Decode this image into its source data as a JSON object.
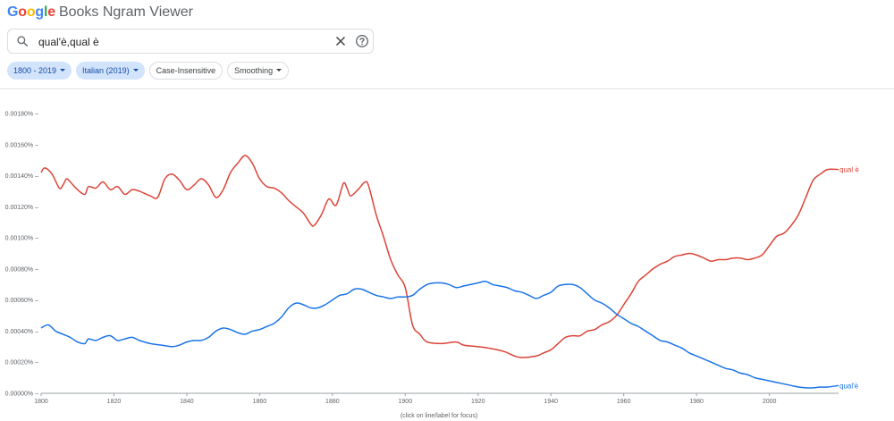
{
  "header": {
    "logo": {
      "letters": [
        "G",
        "o",
        "o",
        "g",
        "l",
        "e"
      ],
      "colors": [
        "#4285f4",
        "#ea4335",
        "#fbbc05",
        "#4285f4",
        "#34a853",
        "#ea4335"
      ]
    },
    "app_name": "Books Ngram Viewer"
  },
  "search": {
    "value": "qual'è,qual è",
    "icon": "search-icon",
    "clear_icon": "close-icon",
    "help_icon": "help-icon"
  },
  "chips": [
    {
      "label": "1800 - 2019",
      "style": "blue",
      "dropdown": true
    },
    {
      "label": "Italian (2019)",
      "style": "blue",
      "dropdown": true
    },
    {
      "label": "Case-Insensitive",
      "style": "plain",
      "dropdown": false
    },
    {
      "label": "Smoothing",
      "style": "plain",
      "dropdown": true
    }
  ],
  "chart_data": {
    "type": "line",
    "xlim": [
      1800,
      2019
    ],
    "ylim": [
      0,
      0.0018
    ],
    "x_ticks": [
      1800,
      1820,
      1840,
      1860,
      1880,
      1900,
      1920,
      1940,
      1960,
      1980,
      2000
    ],
    "y_ticks": [
      {
        "value": 0,
        "label": "0.00000%"
      },
      {
        "value": 0.0002,
        "label": "0.00020%"
      },
      {
        "value": 0.0004,
        "label": "0.00040%"
      },
      {
        "value": 0.0006,
        "label": "0.00060%"
      },
      {
        "value": 0.0008,
        "label": "0.00080%"
      },
      {
        "value": 0.001,
        "label": "0.00100%"
      },
      {
        "value": 0.0012,
        "label": "0.00120%"
      },
      {
        "value": 0.0014,
        "label": "0.00140%"
      },
      {
        "value": 0.0016,
        "label": "0.00160%"
      },
      {
        "value": 0.0018,
        "label": "0.00180%"
      }
    ],
    "grid": false,
    "footnote": "(click on line/label for focus)",
    "series": [
      {
        "name": "qual è",
        "color": "#db4437",
        "points": [
          [
            1800,
            0.00142
          ],
          [
            1801,
            0.00145
          ],
          [
            1803,
            0.00141
          ],
          [
            1805,
            0.00132
          ],
          [
            1806,
            0.00134
          ],
          [
            1807,
            0.00138
          ],
          [
            1808,
            0.00136
          ],
          [
            1810,
            0.00131
          ],
          [
            1812,
            0.00128
          ],
          [
            1813,
            0.00133
          ],
          [
            1815,
            0.00132
          ],
          [
            1817,
            0.00136
          ],
          [
            1819,
            0.00131
          ],
          [
            1821,
            0.00133
          ],
          [
            1823,
            0.00128
          ],
          [
            1825,
            0.00131
          ],
          [
            1827,
            0.0013
          ],
          [
            1830,
            0.00127
          ],
          [
            1832,
            0.00126
          ],
          [
            1834,
            0.00138
          ],
          [
            1836,
            0.00141
          ],
          [
            1838,
            0.00137
          ],
          [
            1840,
            0.00131
          ],
          [
            1842,
            0.00134
          ],
          [
            1844,
            0.00138
          ],
          [
            1846,
            0.00134
          ],
          [
            1848,
            0.00126
          ],
          [
            1850,
            0.00131
          ],
          [
            1852,
            0.00142
          ],
          [
            1854,
            0.00148
          ],
          [
            1856,
            0.00153
          ],
          [
            1858,
            0.00148
          ],
          [
            1860,
            0.00138
          ],
          [
            1862,
            0.00133
          ],
          [
            1864,
            0.00132
          ],
          [
            1866,
            0.00129
          ],
          [
            1868,
            0.00124
          ],
          [
            1870,
            0.0012
          ],
          [
            1872,
            0.00116
          ],
          [
            1874,
            0.00109
          ],
          [
            1875,
            0.00108
          ],
          [
            1877,
            0.00115
          ],
          [
            1879,
            0.00125
          ],
          [
            1881,
            0.00121
          ],
          [
            1883,
            0.00135
          ],
          [
            1884,
            0.00132
          ],
          [
            1885,
            0.00127
          ],
          [
            1887,
            0.00131
          ],
          [
            1889,
            0.00136
          ],
          [
            1890,
            0.00133
          ],
          [
            1892,
            0.00115
          ],
          [
            1894,
            0.00101
          ],
          [
            1896,
            0.00086
          ],
          [
            1898,
            0.00076
          ],
          [
            1900,
            0.00068
          ],
          [
            1902,
            0.00044
          ],
          [
            1904,
            0.00038
          ],
          [
            1906,
            0.00033
          ],
          [
            1910,
            0.00032
          ],
          [
            1914,
            0.00033
          ],
          [
            1916,
            0.00031
          ],
          [
            1920,
            0.0003
          ],
          [
            1923,
            0.00029
          ],
          [
            1927,
            0.00027
          ],
          [
            1930,
            0.00024
          ],
          [
            1932,
            0.00023
          ],
          [
            1936,
            0.00024
          ],
          [
            1938,
            0.00026
          ],
          [
            1940,
            0.00028
          ],
          [
            1942,
            0.00032
          ],
          [
            1944,
            0.00036
          ],
          [
            1946,
            0.00037
          ],
          [
            1948,
            0.00037
          ],
          [
            1950,
            0.0004
          ],
          [
            1952,
            0.00041
          ],
          [
            1954,
            0.00044
          ],
          [
            1956,
            0.00046
          ],
          [
            1958,
            0.0005
          ],
          [
            1960,
            0.00057
          ],
          [
            1962,
            0.00064
          ],
          [
            1964,
            0.00072
          ],
          [
            1966,
            0.00076
          ],
          [
            1968,
            0.0008
          ],
          [
            1970,
            0.00083
          ],
          [
            1972,
            0.00085
          ],
          [
            1974,
            0.00088
          ],
          [
            1976,
            0.00089
          ],
          [
            1978,
            0.0009
          ],
          [
            1980,
            0.00089
          ],
          [
            1982,
            0.00087
          ],
          [
            1984,
            0.00085
          ],
          [
            1986,
            0.00086
          ],
          [
            1988,
            0.00086
          ],
          [
            1990,
            0.00087
          ],
          [
            1992,
            0.00087
          ],
          [
            1994,
            0.00086
          ],
          [
            1996,
            0.00087
          ],
          [
            1998,
            0.00089
          ],
          [
            2000,
            0.00095
          ],
          [
            2002,
            0.00101
          ],
          [
            2004,
            0.00103
          ],
          [
            2006,
            0.00108
          ],
          [
            2008,
            0.00115
          ],
          [
            2010,
            0.00126
          ],
          [
            2012,
            0.00137
          ],
          [
            2014,
            0.00141
          ],
          [
            2016,
            0.00144
          ],
          [
            2019,
            0.00144
          ]
        ]
      },
      {
        "name": "qual'è",
        "color": "#1a73e8",
        "points": [
          [
            1800,
            0.00042
          ],
          [
            1802,
            0.00044
          ],
          [
            1804,
            0.0004
          ],
          [
            1806,
            0.00038
          ],
          [
            1808,
            0.00036
          ],
          [
            1810,
            0.00033
          ],
          [
            1812,
            0.00032
          ],
          [
            1813,
            0.00035
          ],
          [
            1815,
            0.00034
          ],
          [
            1817,
            0.00036
          ],
          [
            1819,
            0.00037
          ],
          [
            1821,
            0.00034
          ],
          [
            1823,
            0.00035
          ],
          [
            1825,
            0.00036
          ],
          [
            1827,
            0.00034
          ],
          [
            1830,
            0.00032
          ],
          [
            1833,
            0.00031
          ],
          [
            1836,
            0.0003
          ],
          [
            1838,
            0.00031
          ],
          [
            1840,
            0.00033
          ],
          [
            1842,
            0.00034
          ],
          [
            1844,
            0.00034
          ],
          [
            1846,
            0.00036
          ],
          [
            1848,
            0.0004
          ],
          [
            1850,
            0.00042
          ],
          [
            1852,
            0.00041
          ],
          [
            1854,
            0.00039
          ],
          [
            1856,
            0.00038
          ],
          [
            1858,
            0.0004
          ],
          [
            1860,
            0.00041
          ],
          [
            1862,
            0.00043
          ],
          [
            1864,
            0.00045
          ],
          [
            1866,
            0.00049
          ],
          [
            1868,
            0.00055
          ],
          [
            1870,
            0.00058
          ],
          [
            1872,
            0.00057
          ],
          [
            1874,
            0.00055
          ],
          [
            1876,
            0.00055
          ],
          [
            1878,
            0.00057
          ],
          [
            1880,
            0.0006
          ],
          [
            1882,
            0.00063
          ],
          [
            1884,
            0.00064
          ],
          [
            1886,
            0.00067
          ],
          [
            1888,
            0.00067
          ],
          [
            1890,
            0.00065
          ],
          [
            1892,
            0.00063
          ],
          [
            1894,
            0.00062
          ],
          [
            1896,
            0.00061
          ],
          [
            1898,
            0.00062
          ],
          [
            1900,
            0.00062
          ],
          [
            1902,
            0.00063
          ],
          [
            1904,
            0.00067
          ],
          [
            1906,
            0.0007
          ],
          [
            1908,
            0.00071
          ],
          [
            1910,
            0.00071
          ],
          [
            1912,
            0.0007
          ],
          [
            1914,
            0.00068
          ],
          [
            1916,
            0.00069
          ],
          [
            1918,
            0.0007
          ],
          [
            1920,
            0.00071
          ],
          [
            1922,
            0.00072
          ],
          [
            1924,
            0.0007
          ],
          [
            1926,
            0.00069
          ],
          [
            1928,
            0.00068
          ],
          [
            1930,
            0.00066
          ],
          [
            1932,
            0.00065
          ],
          [
            1934,
            0.00063
          ],
          [
            1936,
            0.00061
          ],
          [
            1938,
            0.00063
          ],
          [
            1940,
            0.00065
          ],
          [
            1942,
            0.00069
          ],
          [
            1944,
            0.0007
          ],
          [
            1946,
            0.0007
          ],
          [
            1948,
            0.00068
          ],
          [
            1950,
            0.00064
          ],
          [
            1952,
            0.0006
          ],
          [
            1954,
            0.00058
          ],
          [
            1956,
            0.00055
          ],
          [
            1958,
            0.00051
          ],
          [
            1960,
            0.00048
          ],
          [
            1962,
            0.00045
          ],
          [
            1964,
            0.00043
          ],
          [
            1966,
            0.0004
          ],
          [
            1968,
            0.00037
          ],
          [
            1970,
            0.00034
          ],
          [
            1972,
            0.00033
          ],
          [
            1974,
            0.00031
          ],
          [
            1976,
            0.00029
          ],
          [
            1978,
            0.00026
          ],
          [
            1980,
            0.00024
          ],
          [
            1982,
            0.00022
          ],
          [
            1984,
            0.0002
          ],
          [
            1986,
            0.00018
          ],
          [
            1988,
            0.00016
          ],
          [
            1990,
            0.00015
          ],
          [
            1992,
            0.00013
          ],
          [
            1994,
            0.00012
          ],
          [
            1996,
            0.0001
          ],
          [
            1998,
            9e-05
          ],
          [
            2000,
            8e-05
          ],
          [
            2002,
            7e-05
          ],
          [
            2004,
            6e-05
          ],
          [
            2006,
            5e-05
          ],
          [
            2008,
            4e-05
          ],
          [
            2010,
            3.5e-05
          ],
          [
            2012,
            3.5e-05
          ],
          [
            2014,
            4e-05
          ],
          [
            2016,
            4e-05
          ],
          [
            2019,
            5e-05
          ]
        ]
      }
    ]
  }
}
